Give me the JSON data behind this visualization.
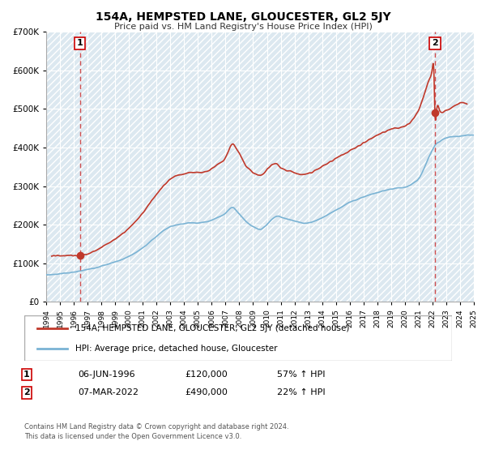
{
  "title": "154A, HEMPSTED LANE, GLOUCESTER, GL2 5JY",
  "subtitle": "Price paid vs. HM Land Registry's House Price Index (HPI)",
  "hpi_label": "HPI: Average price, detached house, Gloucester",
  "property_label": "154A, HEMPSTED LANE, GLOUCESTER, GL2 5JY (detached house)",
  "sale1_date": "06-JUN-1996",
  "sale1_price": 120000,
  "sale1_hpi": "57% ↑ HPI",
  "sale2_date": "07-MAR-2022",
  "sale2_price": 490000,
  "sale2_hpi": "22% ↑ HPI",
  "sale1_x": 1996.44,
  "sale2_x": 2022.18,
  "hpi_color": "#7ab3d4",
  "property_color": "#c0392b",
  "dashed_line_color": "#cc3333",
  "annotation_box_color": "#cc0000",
  "footer": "Contains HM Land Registry data © Crown copyright and database right 2024.\nThis data is licensed under the Open Government Licence v3.0.",
  "xmin": 1994,
  "xmax": 2025,
  "ymin": 0,
  "ymax": 700000,
  "hpi_waypoints": [
    [
      1994.0,
      70000
    ],
    [
      1994.5,
      71000
    ],
    [
      1995.0,
      73000
    ],
    [
      1995.5,
      75000
    ],
    [
      1996.0,
      77000
    ],
    [
      1996.5,
      80000
    ],
    [
      1997.0,
      84000
    ],
    [
      1997.5,
      88000
    ],
    [
      1998.0,
      93000
    ],
    [
      1998.5,
      98000
    ],
    [
      1999.0,
      104000
    ],
    [
      1999.5,
      110000
    ],
    [
      2000.0,
      118000
    ],
    [
      2000.5,
      128000
    ],
    [
      2001.0,
      140000
    ],
    [
      2001.5,
      155000
    ],
    [
      2002.0,
      170000
    ],
    [
      2002.5,
      185000
    ],
    [
      2003.0,
      195000
    ],
    [
      2003.5,
      200000
    ],
    [
      2004.0,
      203000
    ],
    [
      2004.5,
      205000
    ],
    [
      2005.0,
      205000
    ],
    [
      2005.5,
      207000
    ],
    [
      2006.0,
      212000
    ],
    [
      2006.5,
      220000
    ],
    [
      2007.0,
      230000
    ],
    [
      2007.25,
      240000
    ],
    [
      2007.5,
      245000
    ],
    [
      2007.75,
      238000
    ],
    [
      2008.0,
      228000
    ],
    [
      2008.25,
      218000
    ],
    [
      2008.5,
      208000
    ],
    [
      2008.75,
      200000
    ],
    [
      2009.0,
      195000
    ],
    [
      2009.25,
      190000
    ],
    [
      2009.5,
      188000
    ],
    [
      2009.75,
      192000
    ],
    [
      2010.0,
      200000
    ],
    [
      2010.25,
      210000
    ],
    [
      2010.5,
      218000
    ],
    [
      2010.75,
      222000
    ],
    [
      2011.0,
      220000
    ],
    [
      2011.5,
      215000
    ],
    [
      2012.0,
      210000
    ],
    [
      2012.5,
      205000
    ],
    [
      2013.0,
      205000
    ],
    [
      2013.5,
      210000
    ],
    [
      2014.0,
      218000
    ],
    [
      2014.5,
      228000
    ],
    [
      2015.0,
      238000
    ],
    [
      2015.5,
      248000
    ],
    [
      2016.0,
      258000
    ],
    [
      2016.5,
      265000
    ],
    [
      2017.0,
      272000
    ],
    [
      2017.5,
      278000
    ],
    [
      2018.0,
      283000
    ],
    [
      2018.5,
      288000
    ],
    [
      2019.0,
      292000
    ],
    [
      2019.5,
      295000
    ],
    [
      2020.0,
      297000
    ],
    [
      2020.5,
      305000
    ],
    [
      2021.0,
      320000
    ],
    [
      2021.5,
      355000
    ],
    [
      2022.0,
      395000
    ],
    [
      2022.18,
      405000
    ],
    [
      2022.5,
      415000
    ],
    [
      2023.0,
      425000
    ],
    [
      2023.5,
      428000
    ],
    [
      2024.0,
      430000
    ],
    [
      2024.5,
      432000
    ],
    [
      2025.0,
      432000
    ]
  ],
  "prop_waypoints": [
    [
      1994.4,
      118000
    ],
    [
      1994.6,
      119000
    ],
    [
      1995.0,
      119500
    ],
    [
      1995.5,
      120000
    ],
    [
      1996.0,
      120200
    ],
    [
      1996.44,
      120000
    ],
    [
      1996.6,
      121000
    ],
    [
      1997.0,
      125000
    ],
    [
      1997.5,
      132000
    ],
    [
      1998.0,
      142000
    ],
    [
      1998.5,
      152000
    ],
    [
      1999.0,
      163000
    ],
    [
      1999.5,
      176000
    ],
    [
      2000.0,
      192000
    ],
    [
      2000.5,
      210000
    ],
    [
      2001.0,
      230000
    ],
    [
      2001.5,
      255000
    ],
    [
      2002.0,
      278000
    ],
    [
      2002.5,
      300000
    ],
    [
      2003.0,
      318000
    ],
    [
      2003.5,
      328000
    ],
    [
      2004.0,
      332000
    ],
    [
      2004.5,
      335000
    ],
    [
      2005.0,
      335000
    ],
    [
      2005.5,
      338000
    ],
    [
      2006.0,
      345000
    ],
    [
      2006.5,
      358000
    ],
    [
      2007.0,
      375000
    ],
    [
      2007.25,
      395000
    ],
    [
      2007.5,
      410000
    ],
    [
      2007.75,
      400000
    ],
    [
      2008.0,
      385000
    ],
    [
      2008.25,
      368000
    ],
    [
      2008.5,
      352000
    ],
    [
      2008.75,
      342000
    ],
    [
      2009.0,
      335000
    ],
    [
      2009.25,
      330000
    ],
    [
      2009.5,
      328000
    ],
    [
      2009.75,
      332000
    ],
    [
      2010.0,
      342000
    ],
    [
      2010.25,
      352000
    ],
    [
      2010.5,
      358000
    ],
    [
      2010.75,
      355000
    ],
    [
      2011.0,
      348000
    ],
    [
      2011.5,
      340000
    ],
    [
      2012.0,
      335000
    ],
    [
      2012.5,
      330000
    ],
    [
      2013.0,
      332000
    ],
    [
      2013.5,
      340000
    ],
    [
      2014.0,
      350000
    ],
    [
      2014.5,
      362000
    ],
    [
      2015.0,
      372000
    ],
    [
      2015.5,
      382000
    ],
    [
      2016.0,
      392000
    ],
    [
      2016.5,
      402000
    ],
    [
      2017.0,
      412000
    ],
    [
      2017.5,
      422000
    ],
    [
      2018.0,
      432000
    ],
    [
      2018.5,
      440000
    ],
    [
      2019.0,
      448000
    ],
    [
      2019.5,
      452000
    ],
    [
      2020.0,
      456000
    ],
    [
      2020.5,
      470000
    ],
    [
      2021.0,
      498000
    ],
    [
      2021.25,
      520000
    ],
    [
      2021.5,
      548000
    ],
    [
      2021.75,
      575000
    ],
    [
      2022.0,
      608000
    ],
    [
      2022.1,
      598000
    ],
    [
      2022.18,
      490000
    ],
    [
      2022.3,
      495000
    ],
    [
      2022.5,
      498000
    ],
    [
      2022.75,
      492000
    ],
    [
      2023.0,
      495000
    ],
    [
      2023.5,
      505000
    ],
    [
      2024.0,
      515000
    ],
    [
      2024.5,
      512000
    ]
  ]
}
